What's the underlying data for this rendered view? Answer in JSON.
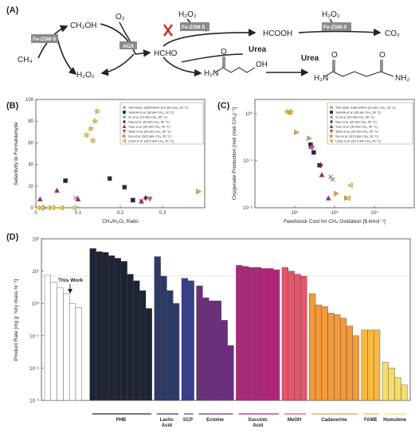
{
  "panels": {
    "a": {
      "label": "(A)"
    },
    "b": {
      "label": "(B)"
    },
    "c": {
      "label": "(C)"
    },
    "d": {
      "label": "(D)"
    }
  },
  "scheme": {
    "ch4": "CH₄",
    "ch3oh": "CH₃OH",
    "o2": "O₂",
    "h2o2_bottom": "H₂O₂",
    "h2o2_top1": "H₂O₂",
    "h2o2_top2": "H₂O₂",
    "hcho": "HCHO",
    "hcooh": "HCOOH",
    "co2": "CO₂",
    "urea1": "Urea",
    "urea2": "Urea",
    "enzyme_fezsm5_1": "Fe-ZSM-5",
    "enzyme_fezsm5_2": "Fe-ZSM-5",
    "enzyme_fezsm5_3": "Fe-ZSM-5",
    "enzyme_aox": "AOX",
    "product1_left": "H₂N",
    "product1_right": "OH",
    "product2_left": "H₂N",
    "product2_right": "NH₂",
    "o_atom": "O",
    "nh_atom": "N"
  },
  "colors": {
    "enzyme_box": "#8a8a8a",
    "cross": "#d42a2a",
    "star": "#f3c433",
    "navy": "#1f2a52",
    "grey_x": "#777777",
    "purple": "#7a1f64",
    "magenta": "#b4216e",
    "pink": "#e04f6a",
    "orange": "#f7a32b",
    "yellow": "#f7d33a"
  },
  "chart_data": [
    {
      "panel": "B",
      "type": "scatter",
      "xlabel": "CH₄/H₂O₂ Ratio",
      "ylabel": "Selectivity to Formaldehyde",
      "xlim": [
        0,
        0.4
      ],
      "ylim": [
        0,
        100
      ],
      "xticks": [
        "0",
        "0.1",
        "0.2",
        "0.3"
      ],
      "yticks": [
        "0",
        "20",
        "40",
        "60",
        "80",
        "100"
      ],
      "legend": "top-right",
      "series": [
        {
          "name": "This Work: ZSM-5/AOX (0.5 atm CH₄, 25 °C)",
          "marker": "star",
          "color": "#f3c433",
          "points": [
            [
              0.12,
              67
            ],
            [
              0.13,
              73
            ],
            [
              0.135,
              62
            ],
            [
              0.14,
              80
            ],
            [
              0.145,
              89
            ]
          ]
        },
        {
          "name": "Yashnik et al. (30 atm CH₄, 50 °C)",
          "marker": "square",
          "color": "#1f2a52",
          "points": [
            [
              0.07,
              25
            ],
            [
              0.175,
              27
            ],
            [
              0.21,
              19
            ],
            [
              0.23,
              7
            ]
          ]
        },
        {
          "name": "Xu et al. (20 atm CH₄, 50 °C)",
          "marker": "x",
          "color": "#777777",
          "points": [
            [
              0.095,
              9
            ],
            [
              0.25,
              6
            ]
          ]
        },
        {
          "name": "Xiao et al. (30 atm CH₄, 50 °C)",
          "marker": "diamond",
          "color": "#7a1f64",
          "points": [
            [
              0.26,
              9
            ]
          ]
        },
        {
          "name": "Yuan et al. (30 atm CH₄, 90 °C)",
          "marker": "triangle-up",
          "color": "#b4216e",
          "points": [
            [
              0.01,
              8
            ],
            [
              0.05,
              16
            ],
            [
              0.1,
              8
            ],
            [
              0.25,
              6
            ]
          ]
        },
        {
          "name": "Taran et al. (30 atm CH₄, 50 °C)",
          "marker": "triangle-down",
          "color": "#e04f6a",
          "points": [
            [
              0.27,
              8
            ]
          ]
        },
        {
          "name": "Sun et al. (30.5 atm CH₄, 50 °C)",
          "marker": "triangle-right",
          "color": "#f7a32b",
          "points": [
            [
              0.385,
              15
            ],
            [
              0.02,
              0
            ]
          ]
        },
        {
          "name": "Lewis et al. (30.5 atm CH₄, 90 °C)",
          "marker": "triangle-left",
          "color": "#f7d33a",
          "points": [
            [
              0.005,
              0
            ],
            [
              0.015,
              0
            ],
            [
              0.03,
              0
            ],
            [
              0.04,
              0
            ],
            [
              0.06,
              0
            ],
            [
              0.09,
              0
            ]
          ]
        }
      ]
    },
    {
      "panel": "C",
      "type": "scatter",
      "xlabel": "Feedstock Cost for CH₄ Oxidation [$ kmol⁻¹]",
      "ylabel": "Oxygenate Production [mol (mol CH₄)⁻¹]",
      "xscale": "log",
      "yscale": "log",
      "xlim": [
        10,
        100000
      ],
      "ylim": [
        0.01,
        2
      ],
      "xticks": [
        "10²",
        "10³",
        "10⁴"
      ],
      "yticks": [
        "10⁻²",
        "10⁻¹",
        "10⁰"
      ],
      "legend": "top-right",
      "series": [
        {
          "name": "This Work: ZSM-5/AOX (0.5 atm CH₄, 25 °C)",
          "marker": "star",
          "color": "#f3c433",
          "points": [
            [
              65,
              1.1
            ],
            [
              75,
              1.05
            ],
            [
              80,
              1.1
            ]
          ]
        },
        {
          "name": "Yashnik et al. (30 atm CH₄, 50 °C)",
          "marker": "square",
          "color": "#1f2a52",
          "points": [
            [
              250,
              0.22
            ],
            [
              300,
              0.15
            ],
            [
              420,
              0.08
            ]
          ]
        },
        {
          "name": "Xu et al. (20 atm CH₄, 50 °C)",
          "marker": "x",
          "color": "#777777",
          "points": [
            [
              800,
              0.045
            ],
            [
              900,
              0.04
            ]
          ]
        },
        {
          "name": "Xiao et al. (30 atm CH₄, 50 °C)",
          "marker": "diamond",
          "color": "#7a1f64",
          "points": [
            [
              450,
              0.08
            ]
          ]
        },
        {
          "name": "Yuan et al. (30 atm CH₄, 90 °C)",
          "marker": "triangle-up",
          "color": "#b4216e",
          "points": [
            [
              260,
              0.2
            ],
            [
              480,
              0.05
            ],
            [
              700,
              0.016
            ]
          ]
        },
        {
          "name": "Taran et al. (30 atm CH₄, 50 °C)",
          "marker": "triangle-down",
          "color": "#e04f6a",
          "points": [
            [
              270,
              0.19
            ]
          ]
        },
        {
          "name": "Sun et al. (30.5 atm CH₄, 50 °C)",
          "marker": "triangle-right",
          "color": "#f7a32b",
          "points": [
            [
              110,
              0.4
            ],
            [
              230,
              0.3
            ],
            [
              2000,
              0.016
            ],
            [
              1100,
              0.02
            ]
          ]
        },
        {
          "name": "Lewis et al. (30.5 atm CH₄, 90 °C)",
          "marker": "triangle-left",
          "color": "#f7d33a",
          "points": [
            [
              2500,
              0.03
            ],
            [
              2200,
              0.016
            ]
          ]
        }
      ]
    },
    {
      "panel": "D",
      "type": "bar",
      "ylabel": "Product Rate [mg g⁻¹dry mass hr⁻¹]",
      "yscale": "log",
      "ylim": [
        0.001,
        100
      ],
      "yticks": [
        "10⁻³",
        "10⁻²",
        "10⁻¹",
        "10⁰",
        "10¹",
        "10²"
      ],
      "reference_line": 7,
      "annotation": "This Work",
      "groups": [
        {
          "label": "",
          "color": "#ffffff",
          "values": [
            7.5,
            4.5,
            3.0,
            2.0,
            1.0,
            0.75
          ]
        },
        {
          "label": "PHB",
          "color": "#1e2433",
          "values": [
            50,
            40,
            38,
            30,
            25,
            20,
            8,
            5,
            2.5,
            0.7
          ]
        },
        {
          "label": "Lactic Acid",
          "color": "#2d3a66",
          "values": [
            28,
            7,
            2.5,
            1.0
          ]
        },
        {
          "label": "SCP",
          "color": "#38408a",
          "values": [
            6,
            5
          ]
        },
        {
          "label": "Ectoine",
          "color": "#6b2f7d",
          "values": [
            3.5,
            1.5,
            1.2,
            1.2,
            0.3,
            0.05
          ]
        },
        {
          "label": "Succinic Acid",
          "color": "#b0277a",
          "values": [
            15,
            14,
            13,
            13,
            12,
            12,
            11
          ]
        },
        {
          "label": "MeOH",
          "color": "#e8546a",
          "values": [
            13,
            10,
            8,
            7
          ]
        },
        {
          "label": "Cadaverine",
          "color": "#f39a3a",
          "values": [
            2.0,
            0.9,
            0.8,
            0.5,
            0.45,
            0.35,
            0.2,
            0.1
          ]
        },
        {
          "label": "FAME",
          "color": "#f8b93e",
          "values": [
            0.15,
            0.15,
            0.15
          ]
        },
        {
          "label": "Humulene",
          "color": "#f6dc6a",
          "values": [
            0.015,
            0.01,
            0.005,
            0.003
          ]
        }
      ]
    }
  ]
}
